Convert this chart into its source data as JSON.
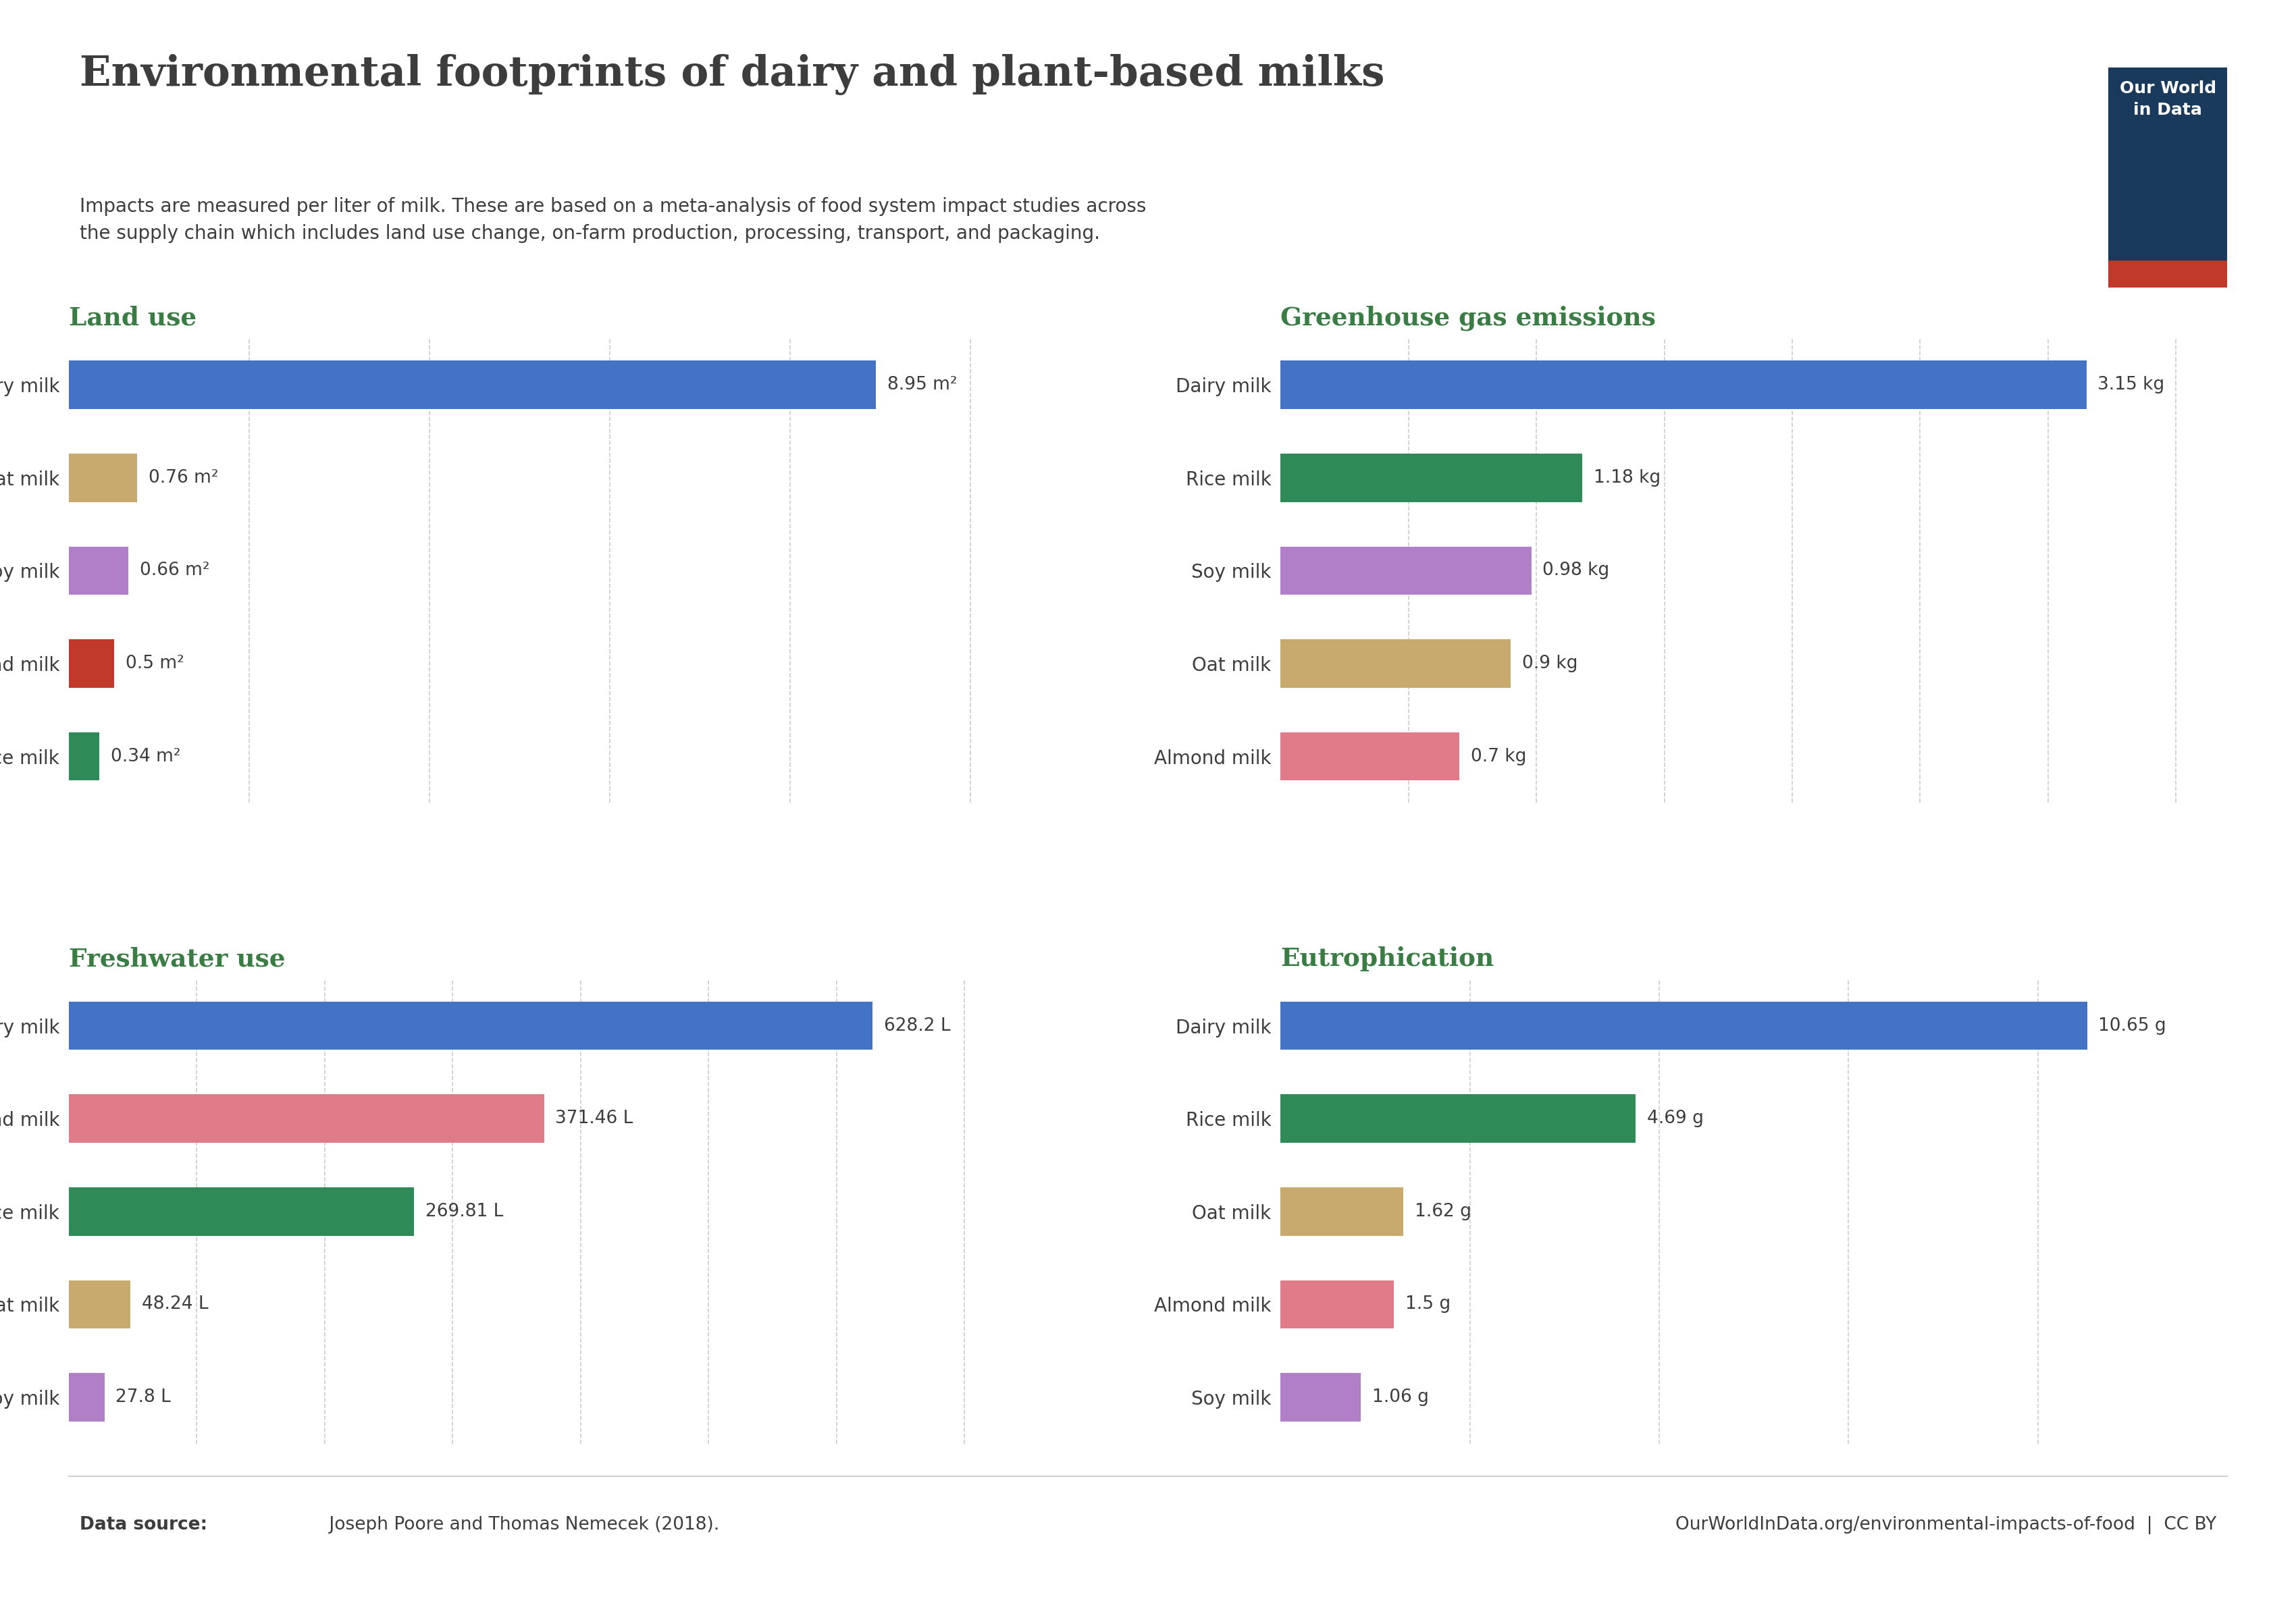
{
  "title": "Environmental footprints of dairy and plant-based milks",
  "subtitle": "Impacts are measured per liter of milk. These are based on a meta-analysis of food system impact studies across\nthe supply chain which includes land use change, on-farm production, processing, transport, and packaging.",
  "title_color": "#3d3d3d",
  "subtitle_color": "#3d3d3d",
  "background_color": "#ffffff",
  "owid_box_color": "#1a3a5c",
  "owid_red": "#c0392b",
  "footer_left_bold": "Data source:",
  "footer_left_normal": " Joseph Poore and Thomas Nemecek (2018).",
  "footer_right": "OurWorldInData.org/environmental-impacts-of-food  |  CC BY",
  "panels": [
    {
      "title": "Land use",
      "title_color": "#3a7d44",
      "unit": "m²",
      "categories": [
        "Dairy milk",
        "Oat milk",
        "Soy milk",
        "Almond milk",
        "Rice milk"
      ],
      "values": [
        8.95,
        0.76,
        0.66,
        0.5,
        0.34
      ],
      "colors": [
        "#4472c4",
        "#c8a96e",
        "#b07fc7",
        "#c0392b",
        "#2e8b57"
      ],
      "xlim": [
        0,
        10.5
      ]
    },
    {
      "title": "Greenhouse gas emissions",
      "title_color": "#3a7d44",
      "unit": "kg",
      "categories": [
        "Dairy milk",
        "Rice milk",
        "Soy milk",
        "Oat milk",
        "Almond milk"
      ],
      "values": [
        3.15,
        1.18,
        0.98,
        0.9,
        0.7
      ],
      "colors": [
        "#4472c4",
        "#2e8b57",
        "#b07fc7",
        "#c8a96e",
        "#e07b8a"
      ],
      "xlim": [
        0,
        3.7
      ]
    },
    {
      "title": "Freshwater use",
      "title_color": "#3a7d44",
      "unit": "L",
      "categories": [
        "Dairy milk",
        "Almond milk",
        "Rice milk",
        "Oat milk",
        "Soy milk"
      ],
      "values": [
        628.2,
        371.46,
        269.81,
        48.24,
        27.8
      ],
      "colors": [
        "#4472c4",
        "#e07b8a",
        "#2e8b57",
        "#c8a96e",
        "#b07fc7"
      ],
      "xlim": [
        0,
        740
      ]
    },
    {
      "title": "Eutrophication",
      "title_color": "#3a7d44",
      "unit": "g",
      "categories": [
        "Dairy milk",
        "Rice milk",
        "Oat milk",
        "Almond milk",
        "Soy milk"
      ],
      "values": [
        10.65,
        4.69,
        1.62,
        1.5,
        1.06
      ],
      "colors": [
        "#4472c4",
        "#2e8b57",
        "#c8a96e",
        "#e07b8a",
        "#b07fc7"
      ],
      "xlim": [
        0,
        12.5
      ]
    }
  ]
}
